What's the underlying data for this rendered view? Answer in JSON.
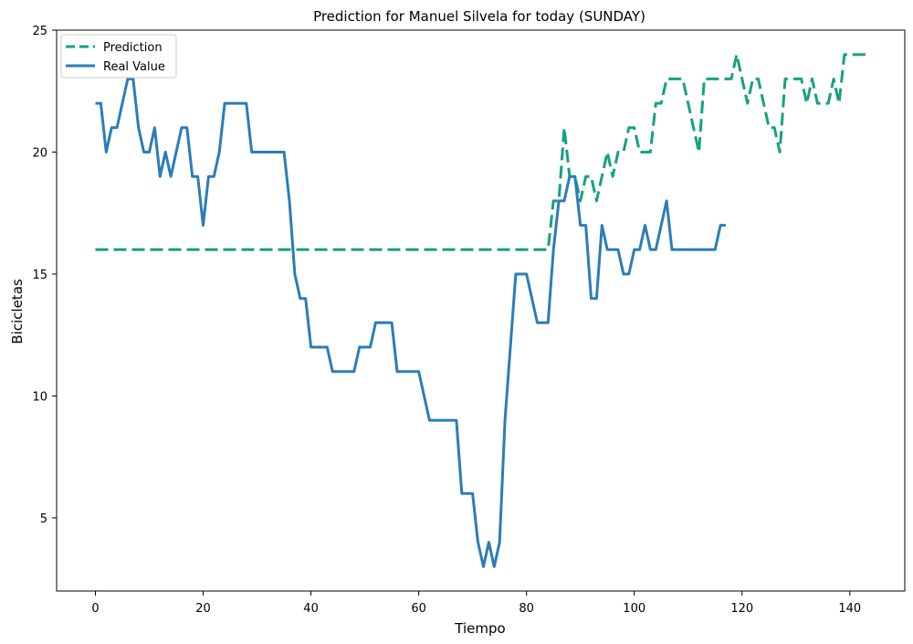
{
  "chart_data": {
    "type": "line",
    "title": "Prediction for Manuel Silvela for today (SUNDAY)",
    "xlabel": "Tiempo",
    "ylabel": "Bicicletas",
    "xlim": [
      -7.2,
      150.2
    ],
    "ylim": [
      2.0,
      25.0
    ],
    "xticks": [
      0,
      20,
      40,
      60,
      80,
      100,
      120,
      140
    ],
    "yticks": [
      5,
      10,
      15,
      20,
      25
    ],
    "grid": false,
    "legend_position": "top-left",
    "series": [
      {
        "name": "Prediction",
        "color": "#17a084",
        "style": "dashed",
        "points": [
          [
            0,
            16
          ],
          [
            84,
            16
          ],
          [
            85,
            18
          ],
          [
            86,
            18
          ],
          [
            87,
            21
          ],
          [
            88,
            19
          ],
          [
            89,
            19
          ],
          [
            90,
            18
          ],
          [
            91,
            19
          ],
          [
            92,
            19
          ],
          [
            93,
            18
          ],
          [
            94,
            19
          ],
          [
            95,
            20
          ],
          [
            96,
            19
          ],
          [
            97,
            20
          ],
          [
            98,
            20
          ],
          [
            99,
            21
          ],
          [
            100,
            21
          ],
          [
            101,
            20
          ],
          [
            102,
            20
          ],
          [
            103,
            20
          ],
          [
            104,
            22
          ],
          [
            105,
            22
          ],
          [
            106,
            23
          ],
          [
            109,
            23
          ],
          [
            110,
            22
          ],
          [
            111,
            21
          ],
          [
            112,
            20
          ],
          [
            113,
            23
          ],
          [
            118,
            23
          ],
          [
            119,
            24
          ],
          [
            120,
            23
          ],
          [
            121,
            22
          ],
          [
            122,
            23
          ],
          [
            123,
            23
          ],
          [
            124,
            22
          ],
          [
            125,
            21
          ],
          [
            126,
            21
          ],
          [
            127,
            20
          ],
          [
            128,
            23
          ],
          [
            131,
            23
          ],
          [
            132,
            22
          ],
          [
            133,
            23
          ],
          [
            134,
            22
          ],
          [
            136,
            22
          ],
          [
            137,
            23
          ],
          [
            138,
            22
          ],
          [
            139,
            24
          ],
          [
            143,
            24
          ]
        ]
      },
      {
        "name": "Real Value",
        "color": "#2b7db8",
        "style": "solid",
        "points": [
          [
            0,
            22
          ],
          [
            1,
            22
          ],
          [
            2,
            20
          ],
          [
            3,
            21
          ],
          [
            4,
            21
          ],
          [
            5,
            22
          ],
          [
            6,
            23
          ],
          [
            7,
            23
          ],
          [
            8,
            21
          ],
          [
            9,
            20
          ],
          [
            10,
            20
          ],
          [
            11,
            21
          ],
          [
            12,
            19
          ],
          [
            13,
            20
          ],
          [
            14,
            19
          ],
          [
            15,
            20
          ],
          [
            16,
            21
          ],
          [
            17,
            21
          ],
          [
            18,
            19
          ],
          [
            19,
            19
          ],
          [
            20,
            17
          ],
          [
            21,
            19
          ],
          [
            22,
            19
          ],
          [
            23,
            20
          ],
          [
            24,
            22
          ],
          [
            28,
            22
          ],
          [
            29,
            20
          ],
          [
            35,
            20
          ],
          [
            36,
            18
          ],
          [
            37,
            15
          ],
          [
            38,
            14
          ],
          [
            39,
            14
          ],
          [
            40,
            12
          ],
          [
            43,
            12
          ],
          [
            44,
            11
          ],
          [
            48,
            11
          ],
          [
            49,
            12
          ],
          [
            51,
            12
          ],
          [
            52,
            13
          ],
          [
            55,
            13
          ],
          [
            56,
            11
          ],
          [
            60,
            11
          ],
          [
            62,
            9
          ],
          [
            67,
            9
          ],
          [
            68,
            6
          ],
          [
            70,
            6
          ],
          [
            71,
            4
          ],
          [
            72,
            3
          ],
          [
            73,
            4
          ],
          [
            74,
            3
          ],
          [
            75,
            4
          ],
          [
            76,
            9
          ],
          [
            77,
            12
          ],
          [
            78,
            15
          ],
          [
            80,
            15
          ],
          [
            81,
            14
          ],
          [
            82,
            13
          ],
          [
            84,
            13
          ],
          [
            85,
            16
          ],
          [
            86,
            18
          ],
          [
            87,
            18
          ],
          [
            88,
            19
          ],
          [
            89,
            19
          ],
          [
            90,
            17
          ],
          [
            91,
            17
          ],
          [
            92,
            14
          ],
          [
            93,
            14
          ],
          [
            94,
            17
          ],
          [
            95,
            16
          ],
          [
            97,
            16
          ],
          [
            98,
            15
          ],
          [
            99,
            15
          ],
          [
            100,
            16
          ],
          [
            101,
            16
          ],
          [
            102,
            17
          ],
          [
            103,
            16
          ],
          [
            104,
            16
          ],
          [
            105,
            17
          ],
          [
            106,
            18
          ],
          [
            107,
            16
          ],
          [
            115,
            16
          ],
          [
            116,
            17
          ],
          [
            117,
            17
          ]
        ]
      }
    ]
  }
}
